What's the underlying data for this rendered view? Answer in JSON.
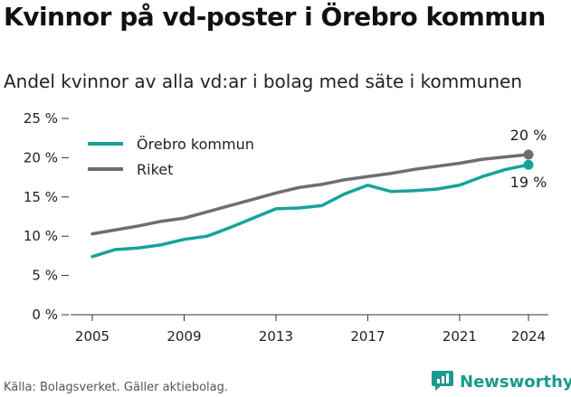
{
  "title": "Kvinnor på vd-poster i Örebro kommun",
  "subtitle": "Andel kvinnor av alla vd:ar i bolag med säte i kommunen",
  "source": "Källa: Bolagsverket. Gäller aktiebolag.",
  "brand": {
    "name": "Newsworthy",
    "color": "#1a9a8c",
    "icon": "newsworthy-logo-icon"
  },
  "chart_data": {
    "type": "line",
    "x": [
      2005,
      2006,
      2007,
      2008,
      2009,
      2010,
      2011,
      2012,
      2013,
      2014,
      2015,
      2016,
      2017,
      2018,
      2019,
      2020,
      2021,
      2022,
      2023,
      2024
    ],
    "series": [
      {
        "name": "Örebro kommun",
        "color": "#16a39a",
        "values": [
          7.4,
          8.3,
          8.5,
          8.9,
          9.6,
          10.0,
          11.1,
          12.3,
          13.5,
          13.6,
          13.9,
          15.4,
          16.5,
          15.7,
          15.8,
          16.0,
          16.5,
          17.6,
          18.5,
          19.1
        ],
        "end_label": "19 %"
      },
      {
        "name": "Riket",
        "color": "#6e6d72",
        "values": [
          10.3,
          10.8,
          11.3,
          11.9,
          12.3,
          13.1,
          13.9,
          14.7,
          15.5,
          16.2,
          16.6,
          17.2,
          17.6,
          18.0,
          18.5,
          18.9,
          19.3,
          19.8,
          20.1,
          20.4
        ],
        "end_label": "20 %"
      }
    ],
    "xticks": [
      2005,
      2009,
      2013,
      2017,
      2021,
      2024
    ],
    "yticks": [
      0,
      5,
      10,
      15,
      20,
      25
    ],
    "ytick_labels": [
      "0 %",
      "5 %",
      "10 %",
      "15 %",
      "20 %",
      "25 %"
    ],
    "ylim": [
      0,
      25
    ],
    "xlim": [
      2005,
      2024
    ],
    "grid": false,
    "legend": "top-left"
  }
}
